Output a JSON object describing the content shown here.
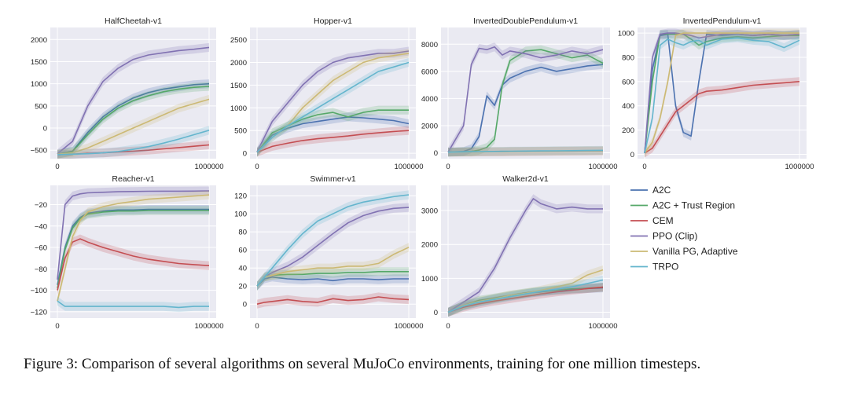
{
  "caption": "Figure 3:  Comparison of several algorithms on several MuJoCo environments, training for one million timesteps.",
  "colors": {
    "A2C": "#4c72b0",
    "A2C + Trust Region": "#55a868",
    "CEM": "#c44e52",
    "PPO (Clip)": "#8172b2",
    "Vanilla PG, Adaptive": "#ccb974",
    "TRPO": "#64b5cd"
  },
  "legend": [
    "A2C",
    "A2C + Trust Region",
    "CEM",
    "PPO (Clip)",
    "Vanilla PG, Adaptive",
    "TRPO"
  ],
  "chart_data": [
    {
      "type": "line",
      "title": "HalfCheetah-v1",
      "xlabel": "",
      "ylabel": "",
      "xlim": [
        0,
        1000000
      ],
      "ylim": [
        -620,
        2200
      ],
      "xticks": [
        0,
        1000000
      ],
      "xtick_labels": [
        "0",
        "1000000"
      ],
      "yticks": [
        -500,
        0,
        500,
        1000,
        1500,
        2000
      ],
      "x": [
        0,
        100000,
        200000,
        300000,
        400000,
        500000,
        600000,
        700000,
        800000,
        900000,
        1000000
      ],
      "series": [
        {
          "name": "A2C",
          "values": [
            -590,
            -520,
            -100,
            250,
            500,
            680,
            800,
            880,
            930,
            980,
            1000
          ]
        },
        {
          "name": "A2C + Trust Region",
          "values": [
            -590,
            -530,
            -150,
            200,
            450,
            620,
            730,
            820,
            880,
            920,
            940
          ]
        },
        {
          "name": "CEM",
          "values": [
            -600,
            -590,
            -570,
            -560,
            -540,
            -520,
            -500,
            -470,
            -440,
            -410,
            -380
          ]
        },
        {
          "name": "PPO (Clip)",
          "values": [
            -580,
            -300,
            500,
            1050,
            1350,
            1550,
            1650,
            1700,
            1750,
            1780,
            1820
          ]
        },
        {
          "name": "Vanilla PG, Adaptive",
          "values": [
            -590,
            -560,
            -450,
            -300,
            -150,
            0,
            150,
            300,
            450,
            550,
            650
          ]
        },
        {
          "name": "TRPO",
          "values": [
            -600,
            -590,
            -580,
            -560,
            -530,
            -480,
            -420,
            -340,
            -250,
            -150,
            -50
          ]
        }
      ]
    },
    {
      "type": "line",
      "title": "Hopper-v1",
      "xlabel": "",
      "ylabel": "",
      "xlim": [
        0,
        1000000
      ],
      "ylim": [
        -50,
        2700
      ],
      "xticks": [
        0,
        1000000
      ],
      "xtick_labels": [
        "0",
        "1000000"
      ],
      "yticks": [
        0,
        500,
        1000,
        1500,
        2000,
        2500
      ],
      "x": [
        0,
        100000,
        200000,
        300000,
        400000,
        500000,
        600000,
        700000,
        800000,
        900000,
        1000000
      ],
      "series": [
        {
          "name": "A2C",
          "values": [
            20,
            400,
            550,
            650,
            700,
            750,
            800,
            780,
            750,
            720,
            650
          ]
        },
        {
          "name": "A2C + Trust Region",
          "values": [
            20,
            450,
            600,
            750,
            850,
            900,
            800,
            900,
            950,
            950,
            950
          ]
        },
        {
          "name": "CEM",
          "values": [
            20,
            150,
            220,
            280,
            320,
            350,
            380,
            420,
            450,
            480,
            500
          ]
        },
        {
          "name": "PPO (Clip)",
          "values": [
            30,
            700,
            1100,
            1500,
            1800,
            2000,
            2100,
            2150,
            2200,
            2200,
            2250
          ]
        },
        {
          "name": "Vanilla PG, Adaptive",
          "values": [
            20,
            350,
            600,
            1000,
            1300,
            1600,
            1800,
            2000,
            2100,
            2150,
            2200
          ]
        },
        {
          "name": "TRPO",
          "values": [
            20,
            350,
            600,
            800,
            1000,
            1200,
            1400,
            1600,
            1800,
            1900,
            2000
          ]
        }
      ]
    },
    {
      "type": "line",
      "title": "InvertedDoublePendulum-v1",
      "xlabel": "",
      "ylabel": "",
      "xlim": [
        0,
        1000000
      ],
      "ylim": [
        -200,
        9000
      ],
      "xticks": [
        0,
        1000000
      ],
      "xtick_labels": [
        "0",
        "1000000"
      ],
      "yticks": [
        0,
        2000,
        4000,
        6000,
        8000
      ],
      "x": [
        0,
        100000,
        150000,
        200000,
        250000,
        300000,
        350000,
        400000,
        500000,
        600000,
        700000,
        800000,
        900000,
        1000000
      ],
      "series": [
        {
          "name": "A2C",
          "values": [
            50,
            100,
            300,
            1200,
            4200,
            3500,
            5000,
            5500,
            6000,
            6300,
            6000,
            6200,
            6400,
            6500
          ]
        },
        {
          "name": "A2C + Trust Region",
          "values": [
            50,
            80,
            100,
            200,
            400,
            1000,
            5000,
            6800,
            7500,
            7600,
            7300,
            7000,
            7200,
            6600
          ]
        },
        {
          "name": "CEM",
          "values": [
            50,
            60,
            60,
            70,
            70,
            80,
            80,
            90,
            100,
            110,
            120,
            130,
            140,
            150
          ]
        },
        {
          "name": "PPO (Clip)",
          "values": [
            50,
            2000,
            6500,
            7700,
            7600,
            7800,
            7200,
            7500,
            7300,
            7000,
            7200,
            7500,
            7300,
            7600
          ]
        },
        {
          "name": "Vanilla PG, Adaptive",
          "values": [
            50,
            60,
            60,
            70,
            80,
            90,
            90,
            100,
            110,
            120,
            130,
            140,
            150,
            150
          ]
        },
        {
          "name": "TRPO",
          "values": [
            50,
            70,
            80,
            90,
            100,
            100,
            110,
            120,
            130,
            140,
            150,
            160,
            170,
            180
          ]
        }
      ]
    },
    {
      "type": "line",
      "title": "InvertedPendulum-v1",
      "xlabel": "",
      "ylabel": "",
      "xlim": [
        0,
        1000000
      ],
      "ylim": [
        -10,
        1020
      ],
      "xticks": [
        0,
        1000000
      ],
      "xtick_labels": [
        "0",
        "1000000"
      ],
      "yticks": [
        0,
        200,
        400,
        600,
        800,
        1000
      ],
      "x": [
        0,
        50000,
        100000,
        150000,
        200000,
        250000,
        300000,
        350000,
        400000,
        500000,
        600000,
        700000,
        800000,
        900000,
        1000000
      ],
      "series": [
        {
          "name": "A2C",
          "values": [
            10,
            700,
            980,
            990,
            400,
            180,
            150,
            600,
            990,
            980,
            990,
            980,
            990,
            980,
            990
          ]
        },
        {
          "name": "A2C + Trust Region",
          "values": [
            10,
            600,
            990,
            990,
            990,
            990,
            950,
            900,
            930,
            960,
            970,
            960,
            970,
            980,
            980
          ]
        },
        {
          "name": "CEM",
          "values": [
            10,
            50,
            150,
            250,
            350,
            400,
            450,
            500,
            520,
            530,
            550,
            570,
            580,
            590,
            600
          ]
        },
        {
          "name": "PPO (Clip)",
          "values": [
            10,
            800,
            990,
            1000,
            1000,
            990,
            980,
            960,
            970,
            990,
            990,
            980,
            990,
            980,
            990
          ]
        },
        {
          "name": "Vanilla PG, Adaptive",
          "values": [
            10,
            100,
            300,
            600,
            980,
            1000,
            1000,
            1000,
            1000,
            1000,
            1000,
            1000,
            1000,
            1000,
            1000
          ]
        },
        {
          "name": "TRPO",
          "values": [
            10,
            300,
            900,
            950,
            920,
            900,
            930,
            940,
            900,
            950,
            960,
            940,
            930,
            880,
            940
          ]
        }
      ]
    },
    {
      "type": "line",
      "title": "Reacher-v1",
      "xlabel": "",
      "ylabel": "",
      "xlim": [
        0,
        1000000
      ],
      "ylim": [
        -123,
        -5
      ],
      "xticks": [
        0,
        1000000
      ],
      "xtick_labels": [
        "0",
        "1000000"
      ],
      "yticks": [
        -120,
        -100,
        -80,
        -60,
        -40,
        -20
      ],
      "x": [
        0,
        50000,
        100000,
        150000,
        200000,
        300000,
        400000,
        500000,
        600000,
        700000,
        800000,
        900000,
        1000000
      ],
      "series": [
        {
          "name": "A2C",
          "values": [
            -95,
            -60,
            -40,
            -32,
            -28,
            -26,
            -25,
            -25,
            -24.5,
            -24.5,
            -24.5,
            -24.5,
            -24.5
          ]
        },
        {
          "name": "A2C + Trust Region",
          "values": [
            -98,
            -62,
            -42,
            -33,
            -29,
            -27,
            -26,
            -26,
            -25.5,
            -25.5,
            -25.5,
            -25.5,
            -25.5
          ]
        },
        {
          "name": "CEM",
          "values": [
            -100,
            -70,
            -55,
            -52,
            -55,
            -60,
            -64,
            -68,
            -71,
            -73,
            -75,
            -76,
            -77
          ]
        },
        {
          "name": "PPO (Clip)",
          "values": [
            -90,
            -20,
            -12,
            -10,
            -9,
            -8.5,
            -8,
            -7.8,
            -7.6,
            -7.5,
            -7.5,
            -7.4,
            -7.3
          ]
        },
        {
          "name": "Vanilla PG, Adaptive",
          "values": [
            -110,
            -80,
            -50,
            -35,
            -27,
            -22,
            -19,
            -17,
            -15,
            -14,
            -13,
            -12,
            -11
          ]
        },
        {
          "name": "TRPO",
          "values": [
            -110,
            -115,
            -115,
            -115,
            -115,
            -115,
            -115,
            -115,
            -115,
            -115,
            -116,
            -115,
            -115
          ]
        }
      ]
    },
    {
      "type": "line",
      "title": "Swimmer-v1",
      "xlabel": "",
      "ylabel": "",
      "xlim": [
        0,
        1000000
      ],
      "ylim": [
        -12,
        128
      ],
      "xticks": [
        0,
        1000000
      ],
      "xtick_labels": [
        "0",
        "1000000"
      ],
      "yticks": [
        0,
        20,
        40,
        60,
        80,
        100,
        120
      ],
      "x": [
        0,
        50000,
        100000,
        200000,
        300000,
        400000,
        500000,
        600000,
        700000,
        800000,
        900000,
        1000000
      ],
      "series": [
        {
          "name": "A2C",
          "values": [
            20,
            28,
            30,
            28,
            27,
            28,
            26,
            28,
            28,
            27,
            28,
            28
          ]
        },
        {
          "name": "A2C + Trust Region",
          "values": [
            20,
            30,
            32,
            33,
            33,
            34,
            34,
            35,
            35,
            36,
            36,
            36
          ]
        },
        {
          "name": "CEM",
          "values": [
            0,
            2,
            3,
            5,
            3,
            2,
            6,
            4,
            5,
            8,
            6,
            5
          ]
        },
        {
          "name": "PPO (Clip)",
          "values": [
            20,
            30,
            35,
            42,
            52,
            65,
            78,
            90,
            98,
            103,
            106,
            107
          ]
        },
        {
          "name": "Vanilla PG, Adaptive",
          "values": [
            20,
            30,
            32,
            36,
            38,
            40,
            40,
            42,
            42,
            45,
            55,
            63
          ]
        },
        {
          "name": "TRPO",
          "values": [
            20,
            30,
            40,
            60,
            78,
            92,
            100,
            108,
            113,
            116,
            119,
            121
          ]
        }
      ]
    },
    {
      "type": "line",
      "title": "Walker2d-v1",
      "xlabel": "",
      "ylabel": "",
      "xlim": [
        0,
        1000000
      ],
      "ylim": [
        -80,
        3650
      ],
      "xticks": [
        0,
        1000000
      ],
      "xtick_labels": [
        "0",
        "1000000"
      ],
      "yticks": [
        0,
        1000,
        2000,
        3000
      ],
      "x": [
        0,
        100000,
        200000,
        300000,
        400000,
        500000,
        550000,
        600000,
        700000,
        800000,
        900000,
        1000000
      ],
      "series": [
        {
          "name": "A2C",
          "values": [
            0,
            200,
            300,
            400,
            480,
            550,
            580,
            600,
            650,
            680,
            700,
            720
          ]
        },
        {
          "name": "A2C + Trust Region",
          "values": [
            0,
            200,
            350,
            420,
            500,
            570,
            600,
            620,
            660,
            690,
            710,
            740
          ]
        },
        {
          "name": "CEM",
          "values": [
            0,
            150,
            250,
            330,
            400,
            470,
            500,
            540,
            600,
            650,
            700,
            740
          ]
        },
        {
          "name": "PPO (Clip)",
          "values": [
            0,
            300,
            600,
            1300,
            2200,
            3000,
            3350,
            3200,
            3050,
            3100,
            3050,
            3050
          ]
        },
        {
          "name": "Vanilla PG, Adaptive",
          "values": [
            0,
            200,
            320,
            400,
            500,
            560,
            600,
            650,
            750,
            850,
            1100,
            1250
          ]
        },
        {
          "name": "TRPO",
          "values": [
            0,
            180,
            300,
            380,
            460,
            540,
            580,
            620,
            680,
            750,
            850,
            950
          ]
        }
      ]
    }
  ]
}
